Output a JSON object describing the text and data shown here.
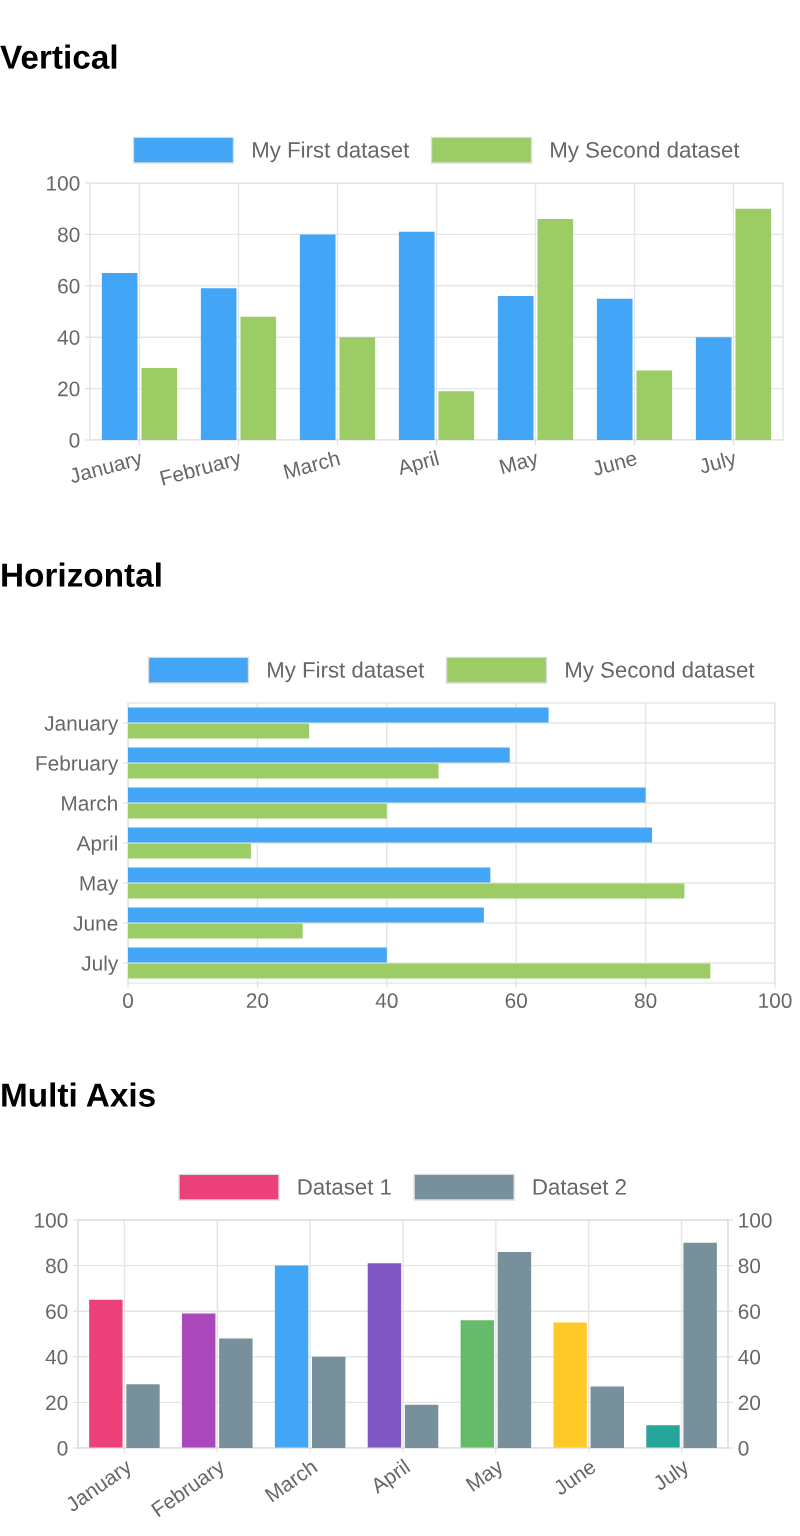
{
  "chart_data": [
    {
      "type": "bar",
      "title": "Vertical",
      "categories": [
        "January",
        "February",
        "March",
        "April",
        "May",
        "June",
        "July"
      ],
      "series": [
        {
          "name": "My First dataset",
          "color": "#42a5f5",
          "values": [
            65,
            59,
            80,
            81,
            56,
            55,
            40
          ]
        },
        {
          "name": "My Second dataset",
          "color": "#9ccc65",
          "values": [
            28,
            48,
            40,
            19,
            86,
            27,
            90
          ]
        }
      ],
      "ylim": [
        0,
        100
      ],
      "yticks": [
        0,
        20,
        40,
        60,
        80,
        100
      ],
      "grid": true,
      "legend": "top"
    },
    {
      "type": "bar",
      "title": "Horizontal",
      "orientation": "horizontal",
      "categories": [
        "January",
        "February",
        "March",
        "April",
        "May",
        "June",
        "July"
      ],
      "series": [
        {
          "name": "My First dataset",
          "color": "#42a5f5",
          "values": [
            65,
            59,
            80,
            81,
            56,
            55,
            40
          ]
        },
        {
          "name": "My Second dataset",
          "color": "#9ccc65",
          "values": [
            28,
            48,
            40,
            19,
            86,
            27,
            90
          ]
        }
      ],
      "xlim": [
        0,
        100
      ],
      "xticks": [
        0,
        20,
        40,
        60,
        80,
        100
      ],
      "grid": true,
      "legend": "top"
    },
    {
      "type": "bar",
      "title": "Multi Axis",
      "categories": [
        "January",
        "February",
        "March",
        "April",
        "May",
        "June",
        "July"
      ],
      "series": [
        {
          "name": "Dataset 1",
          "color": "#ec407a",
          "colors": [
            "#ec407a",
            "#ab47bc",
            "#42a5f5",
            "#7e57c2",
            "#66bb6a",
            "#ffca28",
            "#26a69a"
          ],
          "values": [
            65,
            59,
            80,
            81,
            56,
            55,
            10
          ]
        },
        {
          "name": "Dataset 2",
          "color": "#78909c",
          "axis": "y2",
          "values": [
            28,
            48,
            40,
            19,
            86,
            27,
            90
          ]
        }
      ],
      "ylim": [
        0,
        100
      ],
      "yticks": [
        0,
        20,
        40,
        60,
        80,
        100
      ],
      "y2lim": [
        0,
        100
      ],
      "y2ticks": [
        0,
        20,
        40,
        60,
        80,
        100
      ],
      "grid": true,
      "legend": "top"
    }
  ]
}
